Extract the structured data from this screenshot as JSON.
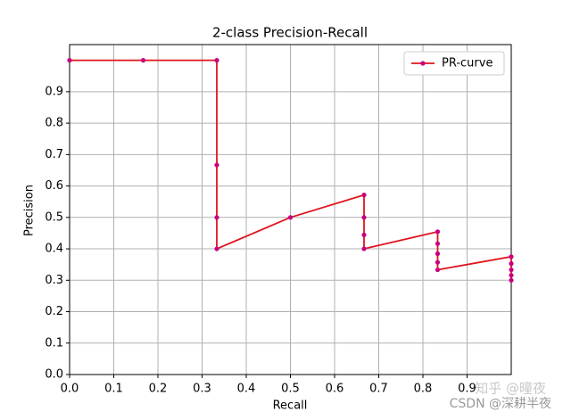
{
  "chart_data": {
    "type": "line",
    "title": "2-class Precision-Recall",
    "x_label": "Recall",
    "y_label": "Precision",
    "x": [
      0,
      0.1667,
      0.3333,
      0.3333,
      0.3333,
      0.3333,
      0.5,
      0.6667,
      0.6667,
      0.6667,
      0.6667,
      0.8333,
      0.8333,
      0.8333,
      0.8333,
      0.8333,
      1,
      1,
      1,
      1,
      1
    ],
    "series": [
      {
        "name": "PR-curve",
        "color": "#e0141e",
        "marker_color": "#c8007f",
        "values": [
          1,
          1,
          1,
          0.6667,
          0.5,
          0.4,
          0.5,
          0.5714,
          0.5,
          0.4444,
          0.4,
          0.4545,
          0.4167,
          0.3846,
          0.3571,
          0.3333,
          0.375,
          0.3529,
          0.3333,
          0.3158,
          0.3
        ]
      }
    ],
    "xlim": [
      0,
      1
    ],
    "ylim": [
      0,
      1.05
    ],
    "xticks": [
      {
        "value": 0,
        "label": "0.0"
      },
      0.1,
      0.2,
      0.3,
      0.4,
      0.5,
      0.6,
      0.7,
      0.8,
      0.9
    ],
    "yticks": [
      {
        "value": 0,
        "label": "0.0"
      },
      0.1,
      0.2,
      0.3,
      0.4,
      0.5,
      0.6,
      0.7,
      0.8,
      0.9
    ],
    "grid": true,
    "legend": "upper right",
    "watermarks": [
      "知乎 @曈夜",
      "CSDN @深耕半夜"
    ]
  }
}
